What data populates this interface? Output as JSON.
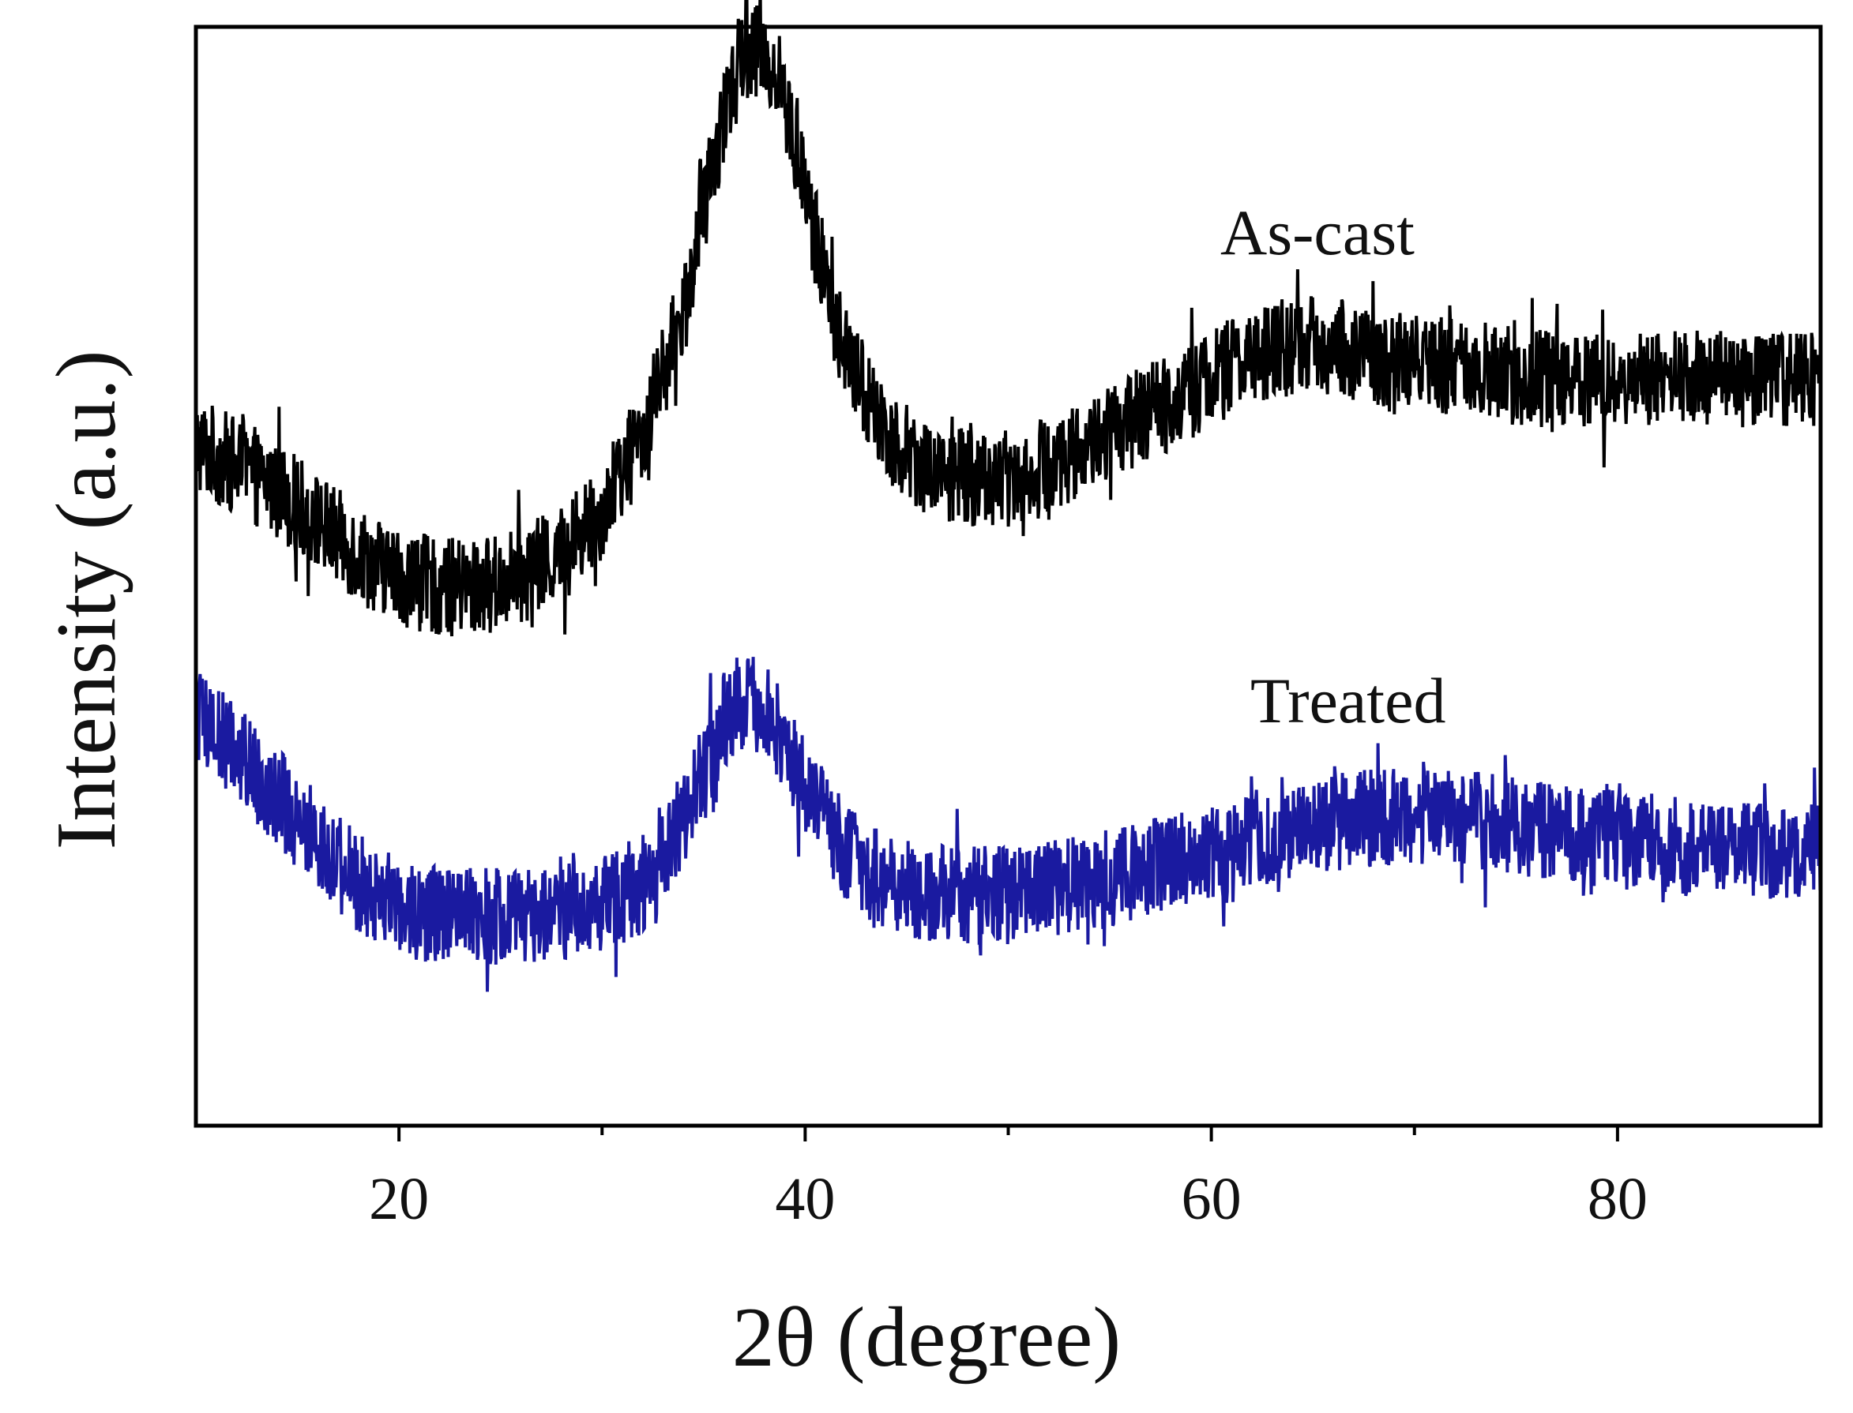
{
  "chart_data": {
    "type": "line",
    "title": "",
    "xlabel": "2θ (degree)",
    "ylabel": "Intensity (a.u.)",
    "xlim": [
      10,
      90
    ],
    "ylim": [
      0,
      10
    ],
    "xticks": [
      20,
      40,
      60,
      80
    ],
    "minor_xticks": [
      30,
      50,
      70
    ],
    "y_ticks_shown": false,
    "grid": false,
    "legend": "none",
    "annotations": [
      "As-cast",
      "Treated"
    ],
    "noise_amplitude": 0.45,
    "series": [
      {
        "name": "As-cast",
        "label": "As-cast",
        "color": "#000000",
        "x": [
          10,
          12,
          14,
          16,
          18,
          20,
          22,
          24,
          26,
          28,
          30,
          32,
          34,
          35,
          36,
          37,
          38,
          39,
          40,
          41,
          42,
          44,
          46,
          48,
          50,
          52,
          54,
          56,
          58,
          60,
          62,
          64,
          66,
          68,
          70,
          72,
          74,
          76,
          78,
          80,
          82,
          84,
          86,
          88,
          90
        ],
        "y": [
          6.2,
          6.0,
          5.8,
          5.5,
          5.2,
          5.0,
          4.9,
          4.9,
          5.0,
          5.2,
          5.6,
          6.3,
          7.4,
          8.3,
          9.2,
          9.8,
          9.8,
          9.3,
          8.5,
          7.7,
          7.0,
          6.3,
          6.0,
          5.9,
          5.9,
          6.0,
          6.2,
          6.4,
          6.6,
          6.8,
          7.0,
          7.1,
          7.1,
          7.0,
          6.95,
          6.9,
          6.85,
          6.8,
          6.8,
          6.8,
          6.8,
          6.8,
          6.8,
          6.8,
          6.8
        ]
      },
      {
        "name": "Treated",
        "label": "Treated",
        "color": "#1a1aa0",
        "x": [
          10,
          12,
          14,
          16,
          18,
          20,
          22,
          24,
          26,
          28,
          30,
          32,
          34,
          35,
          36,
          37,
          38,
          39,
          40,
          41,
          42,
          44,
          46,
          48,
          50,
          52,
          54,
          56,
          58,
          60,
          62,
          64,
          66,
          68,
          70,
          72,
          74,
          76,
          78,
          80,
          82,
          84,
          86,
          88,
          90
        ],
        "y": [
          3.7,
          3.4,
          3.0,
          2.6,
          2.2,
          2.0,
          1.9,
          1.9,
          1.9,
          1.95,
          2.0,
          2.2,
          2.8,
          3.2,
          3.7,
          3.9,
          3.8,
          3.5,
          3.1,
          2.8,
          2.5,
          2.2,
          2.1,
          2.1,
          2.1,
          2.15,
          2.2,
          2.3,
          2.4,
          2.5,
          2.6,
          2.7,
          2.75,
          2.8,
          2.8,
          2.8,
          2.75,
          2.7,
          2.65,
          2.6,
          2.55,
          2.5,
          2.5,
          2.5,
          2.5
        ]
      }
    ]
  }
}
